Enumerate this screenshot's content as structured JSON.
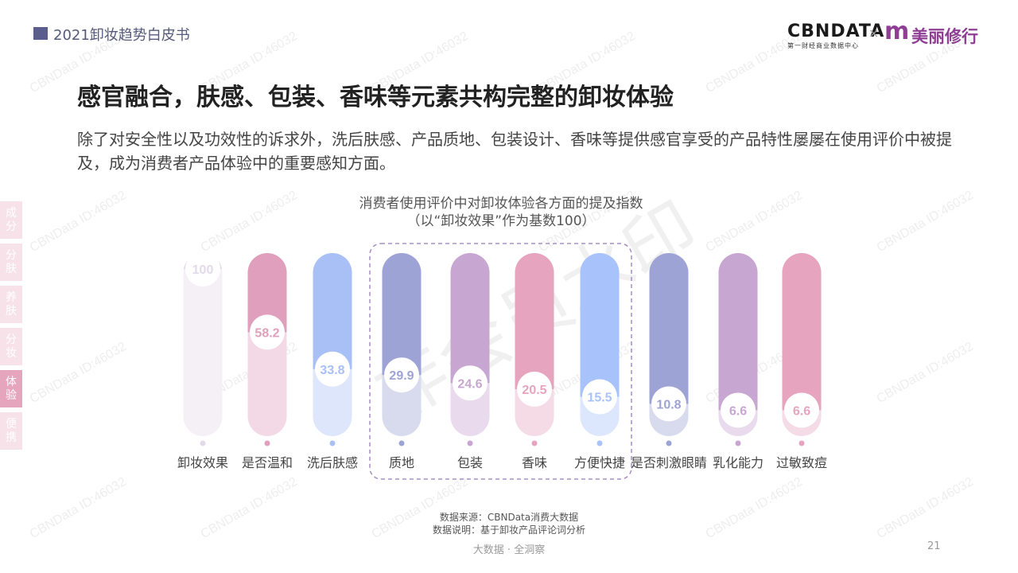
{
  "header": {
    "report_title": "2021卸妆趋势白皮书",
    "logo_cbn": "CBNDATA",
    "logo_cbn_sub": "第一财经商业数据中心",
    "logo_separator": "×",
    "logo_m": "m",
    "logo_partner": "美丽修行"
  },
  "main": {
    "heading": "感官融合，肤感、包装、香味等元素共构完整的卸妆体验",
    "description": "除了对安全性以及功效性的诉求外，洗后肤感、产品质地、包装设计、香味等提供感官享受的产品特性屡屡在使用评价中被提及，成为消费者产品体验中的重要感知方面。"
  },
  "sidenav": {
    "items": [
      {
        "label": "成分"
      },
      {
        "label": "分肤"
      },
      {
        "label": "养肤"
      },
      {
        "label": "分妆"
      },
      {
        "label": "体验"
      },
      {
        "label": "便携"
      }
    ]
  },
  "chart_data": {
    "type": "bar",
    "title": "消费者使用评价中对卸妆体验各方面的提及指数",
    "subtitle": "（以“卸妆效果”作为基数100）",
    "categories": [
      "卸妆效果",
      "是否温和",
      "洗后肤感",
      "质地",
      "包装",
      "香味",
      "方便快捷",
      "是否刺激眼睛",
      "乳化能力",
      "过敏致痘"
    ],
    "values": [
      100,
      58.2,
      33.8,
      29.9,
      24.6,
      20.5,
      15.5,
      10.8,
      6.6,
      6.6
    ],
    "ylim": [
      0,
      100
    ],
    "colors": [
      "#e3dae9",
      "#e0a0bd",
      "#a9c0f6",
      "#9ea3d5",
      "#c8a6d2",
      "#e6a4bf",
      "#a8c2fb",
      "#9ea3d5",
      "#c8a6d2",
      "#e6a4bf"
    ],
    "highlight_group": [
      "质地",
      "包装",
      "香味",
      "方便快捷"
    ]
  },
  "footer": {
    "source": "数据来源：CBNData消费大数据",
    "note": "数据说明：基于卸妆产品评论词分析",
    "slogan": "大数据 · 全洞察",
    "page_number": "21"
  },
  "watermark": {
    "text": "CBNData ID:46032",
    "big_text": "非会员水印"
  }
}
